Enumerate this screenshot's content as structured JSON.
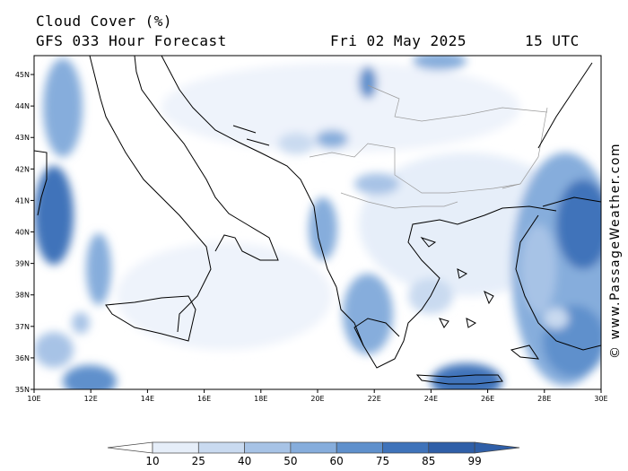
{
  "header": {
    "product": "Cloud Cover (%)",
    "model_run": "GFS 033 Hour Forecast",
    "valid_date": "Fri 02 May 2025",
    "valid_time": "15 UTC"
  },
  "map": {
    "lat_labels": [
      "45N",
      "44N",
      "43N",
      "42N",
      "41N",
      "40N",
      "39N",
      "38N",
      "37N",
      "36N",
      "35N"
    ],
    "lon_labels": [
      "10E",
      "12E",
      "14E",
      "16E",
      "18E",
      "20E",
      "22E",
      "24E",
      "26E",
      "28E",
      "30E"
    ],
    "lat_range": [
      35,
      45.6
    ],
    "lon_range": [
      10,
      30
    ]
  },
  "colorbar": {
    "levels": [
      "10",
      "25",
      "40",
      "50",
      "60",
      "75",
      "85",
      "99"
    ],
    "colors": [
      "#ffffff",
      "#e6eef9",
      "#c9daf0",
      "#a7c3e6",
      "#86addc",
      "#5f90cc",
      "#3f73ba",
      "#2f5fa8"
    ]
  },
  "credit": "© www.PassageWeather.com"
}
